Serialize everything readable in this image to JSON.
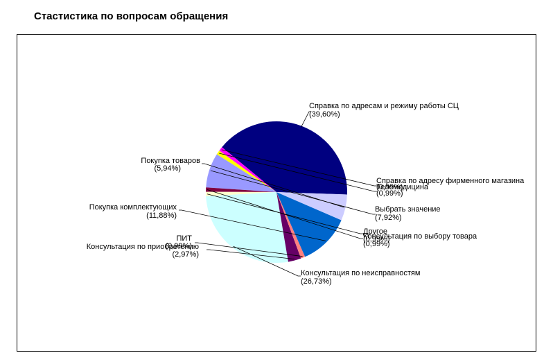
{
  "chart_data": {
    "type": "pie",
    "title": "Стастистика по вопросам обращения",
    "slices": [
      {
        "label": "Справка по адресам и режиму работы СЦ",
        "pct_text": "(39,60%)",
        "value": 39.6,
        "color": "#000080"
      },
      {
        "label": "Справка по адресу фирменного магазина",
        "pct_text": "(0,99%)",
        "value": 0.99,
        "color": "#ff00ff"
      },
      {
        "label": "Телемедицина",
        "pct_text": "(0,99%)",
        "value": 0.99,
        "color": "#ffff00"
      },
      {
        "label": "Выбрать значение",
        "pct_text": "(7,92%)",
        "value": 7.92,
        "color": "#9999ff"
      },
      {
        "label": "Консультация по выбору товара",
        "pct_text": "(0,99%)",
        "value": 0.99,
        "color": "#800040"
      },
      {
        "label": "Другое",
        "pct_text": "(0,99%)",
        "value": 0.99,
        "color": "#ffffcc"
      },
      {
        "label": "Консультация по неисправностям",
        "pct_text": "(26,73%)",
        "value": 26.73,
        "color": "#ccffff"
      },
      {
        "label": "Консультация по приобретению",
        "pct_text": "(2,97%)",
        "value": 2.97,
        "color": "#660066"
      },
      {
        "label": "ПИТ",
        "pct_text": "(0,99%)",
        "value": 0.99,
        "color": "#ff8080"
      },
      {
        "label": "Покупка комплектующих",
        "pct_text": "(11,88%)",
        "value": 11.88,
        "color": "#0066cc"
      },
      {
        "label": "Покупка товаров",
        "pct_text": "(5,94%)",
        "value": 5.94,
        "color": "#ccccff"
      }
    ]
  }
}
